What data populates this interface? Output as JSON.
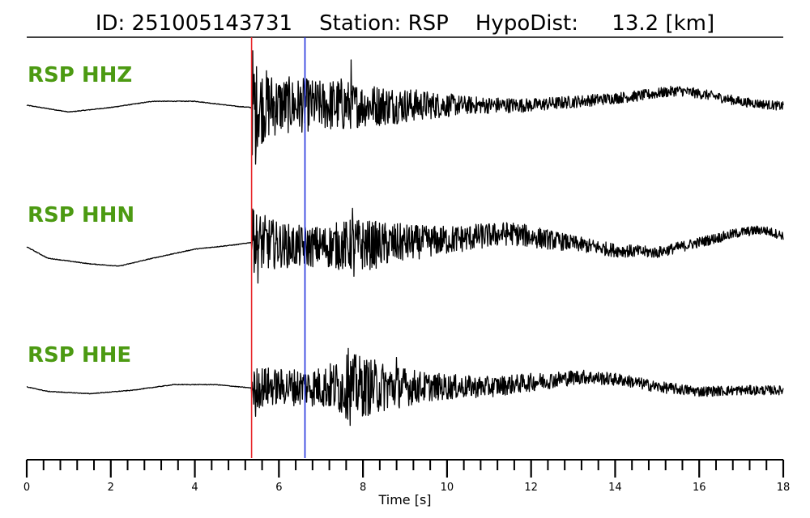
{
  "title": "ID: 251005143731    Station: RSP    HypoDist:     13.2 [km]",
  "chart_data": {
    "type": "line",
    "title": "ID: 251005143731    Station: RSP    HypoDist:     13.2 [km]",
    "xlabel": "Time [s]",
    "xlim": [
      0,
      18
    ],
    "x_ticks": [
      0,
      2,
      4,
      6,
      8,
      10,
      12,
      14,
      16,
      18
    ],
    "grid": false,
    "colors": {
      "trace": "#000000",
      "label": "#4c9a12",
      "p_pick": "#e8272b",
      "s_pick": "#2233dd"
    },
    "picks": [
      {
        "name": "P",
        "time": 5.35,
        "color": "#e8272b"
      },
      {
        "name": "S",
        "time": 6.62,
        "color": "#2233dd"
      }
    ],
    "series": [
      {
        "name": "RSP HHZ",
        "onset": 5.35,
        "pre_event": [
          [
            0,
            0.0
          ],
          [
            1,
            -0.6
          ],
          [
            2,
            -0.2
          ],
          [
            3,
            0.35
          ],
          [
            4,
            0.35
          ],
          [
            5,
            -0.1
          ],
          [
            5.35,
            -0.2
          ]
        ],
        "envelope": [
          [
            5.35,
            4.8
          ],
          [
            5.5,
            3.6
          ],
          [
            6,
            2.6
          ],
          [
            6.6,
            2.4
          ],
          [
            7,
            2.2
          ],
          [
            7.5,
            2.5
          ],
          [
            7.8,
            2.0
          ],
          [
            8.5,
            1.8
          ],
          [
            9.5,
            1.3
          ],
          [
            10.5,
            0.8
          ],
          [
            12,
            0.6
          ],
          [
            14,
            0.5
          ],
          [
            16,
            0.45
          ],
          [
            18,
            0.4
          ]
        ],
        "trend": [
          [
            5.35,
            0
          ],
          [
            12,
            0
          ],
          [
            13,
            0.3
          ],
          [
            14.5,
            0.8
          ],
          [
            15.5,
            1.3
          ],
          [
            16.2,
            0.9
          ],
          [
            17,
            0.3
          ],
          [
            18,
            -0.1
          ]
        ],
        "peaks": [
          [
            5.38,
            4.8
          ],
          [
            5.45,
            -5.2
          ],
          [
            7.72,
            4.0
          ]
        ]
      },
      {
        "name": "RSP HHN",
        "onset": 5.35,
        "pre_event": [
          [
            0,
            0.0
          ],
          [
            0.5,
            -1.0
          ],
          [
            1.5,
            -1.5
          ],
          [
            2.2,
            -1.7
          ],
          [
            3,
            -1.0
          ],
          [
            4,
            -0.2
          ],
          [
            5,
            0.2
          ],
          [
            5.35,
            0.4
          ]
        ],
        "envelope": [
          [
            5.35,
            3.0
          ],
          [
            6,
            2.0
          ],
          [
            7,
            1.8
          ],
          [
            7.5,
            2.2
          ],
          [
            7.8,
            2.4
          ],
          [
            8.5,
            2.0
          ],
          [
            9.5,
            1.4
          ],
          [
            11,
            1.1
          ],
          [
            12,
            1.0
          ],
          [
            13,
            0.7
          ],
          [
            15,
            0.5
          ],
          [
            18,
            0.4
          ]
        ],
        "trend": [
          [
            5.35,
            0.4
          ],
          [
            6.5,
            0
          ],
          [
            8.5,
            0.2
          ],
          [
            10,
            0.6
          ],
          [
            11.5,
            1.2
          ],
          [
            12.5,
            0.6
          ],
          [
            14,
            -0.3
          ],
          [
            15,
            -0.5
          ],
          [
            16,
            0.4
          ],
          [
            17,
            1.3
          ],
          [
            17.5,
            1.5
          ],
          [
            18,
            1.0
          ]
        ],
        "peaks": [
          [
            5.4,
            3.2
          ],
          [
            5.5,
            -3.2
          ],
          [
            7.75,
            3.4
          ],
          [
            7.78,
            -2.6
          ]
        ]
      },
      {
        "name": "RSP HHE",
        "onset": 5.35,
        "pre_event": [
          [
            0,
            0.0
          ],
          [
            0.5,
            -0.4
          ],
          [
            1.5,
            -0.6
          ],
          [
            2.5,
            -0.3
          ],
          [
            3.5,
            0.2
          ],
          [
            4.5,
            0.2
          ],
          [
            5.35,
            -0.1
          ]
        ],
        "envelope": [
          [
            5.35,
            2.0
          ],
          [
            6,
            1.6
          ],
          [
            7,
            1.8
          ],
          [
            7.5,
            2.6
          ],
          [
            7.7,
            3.0
          ],
          [
            8.5,
            2.2
          ],
          [
            9.5,
            1.3
          ],
          [
            10.5,
            1.0
          ],
          [
            12,
            0.8
          ],
          [
            13.5,
            0.6
          ],
          [
            15,
            0.5
          ],
          [
            18,
            0.4
          ]
        ],
        "trend": [
          [
            5.35,
            0
          ],
          [
            11,
            0
          ],
          [
            12,
            0.4
          ],
          [
            13.2,
            0.9
          ],
          [
            14.2,
            0.6
          ],
          [
            15,
            0
          ],
          [
            16,
            -0.4
          ],
          [
            17,
            -0.3
          ],
          [
            18,
            -0.3
          ]
        ],
        "peaks": [
          [
            5.45,
            -2.6
          ],
          [
            7.65,
            3.4
          ],
          [
            7.7,
            -3.4
          ],
          [
            8.8,
            2.6
          ]
        ]
      }
    ]
  }
}
